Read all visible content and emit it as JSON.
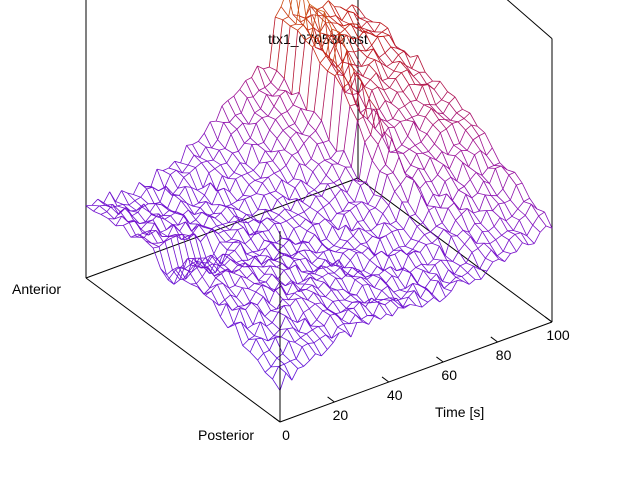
{
  "chart_data": {
    "type": "surface-wireframe",
    "title": "ttx1_070530.ost",
    "xlabel": "Time [s]",
    "x_ticks": [
      "0",
      "20",
      "40",
      "60",
      "80",
      "100"
    ],
    "xlim": [
      0,
      100
    ],
    "y_labels": {
      "front": "Posterior",
      "back": "Anterior"
    },
    "colormap": [
      "#6010d8",
      "#7a10c8",
      "#a01090",
      "#c01810",
      "#d06010",
      "#d09030"
    ],
    "surface": {
      "description_rows": "posterior to anterior",
      "approx_height_profile_over_time": [
        {
          "t": 0,
          "z": 0.25
        },
        {
          "t": 20,
          "z": 0.28
        },
        {
          "t": 40,
          "z": 0.4
        },
        {
          "t": 60,
          "z": 0.62
        },
        {
          "t": 80,
          "z": 0.78
        },
        {
          "t": 100,
          "z": 0.72
        }
      ]
    }
  }
}
